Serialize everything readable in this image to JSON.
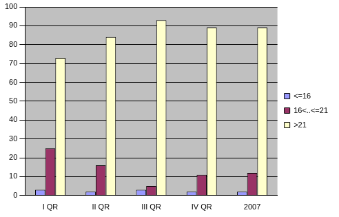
{
  "chart_data": {
    "type": "bar",
    "categories": [
      "I QR",
      "II QR",
      "III QR",
      "IV QR",
      "2007"
    ],
    "series": [
      {
        "name": "<=16",
        "color": "#9999ff",
        "values": [
          3,
          2,
          3,
          2,
          2
        ]
      },
      {
        "name": "16<..<=21",
        "color": "#993366",
        "values": [
          25,
          16,
          5,
          11,
          12
        ]
      },
      {
        "name": ">21",
        "color": "#ffffcc",
        "values": [
          73,
          84,
          93,
          89,
          89
        ]
      }
    ],
    "ylim": [
      0,
      100
    ],
    "yticks": [
      0,
      10,
      20,
      30,
      40,
      50,
      60,
      70,
      80,
      90,
      100
    ],
    "grid": true,
    "legend": "right"
  }
}
